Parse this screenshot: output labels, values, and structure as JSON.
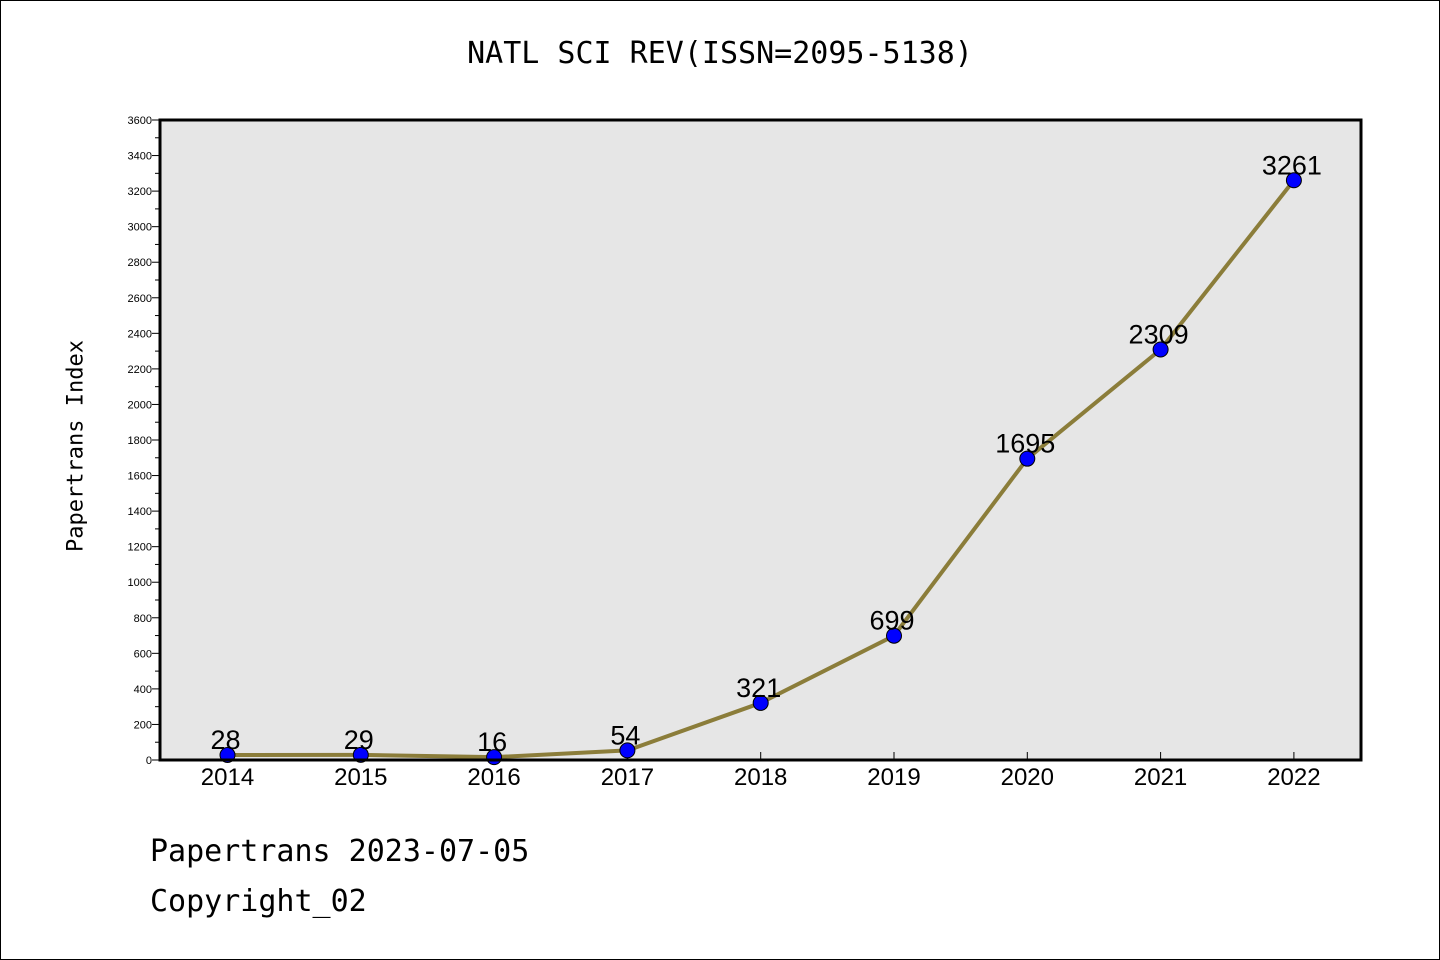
{
  "colors": {
    "plot_background": "#e6e6e6",
    "line": "#8b7d3a",
    "marker": "#0000ff",
    "axis": "#000000"
  },
  "chart_data": {
    "type": "line",
    "title": "NATL SCI REV(ISSN=2095-5138)",
    "xlabel": "",
    "ylabel": "Papertrans Index",
    "categories": [
      "2014",
      "2015",
      "2016",
      "2017",
      "2018",
      "2019",
      "2020",
      "2021",
      "2022"
    ],
    "series": [
      {
        "values": [
          28,
          29,
          16,
          54,
          321,
          699,
          1695,
          2309,
          3261
        ]
      }
    ],
    "data_labels": [
      "28",
      "29",
      "16",
      "54",
      "321",
      "699",
      "1695",
      "2309",
      "3261"
    ],
    "ylim": [
      0,
      3600
    ],
    "yticks": [
      "0",
      "200",
      "400",
      "600",
      "800",
      "1000",
      "1200",
      "1400",
      "1600",
      "1800",
      "2000",
      "2200",
      "2400",
      "2600",
      "2800",
      "3000",
      "3200",
      "3400",
      "3600"
    ],
    "grid": false,
    "legend": "none"
  },
  "footer": {
    "line1": "Papertrans 2023-07-05",
    "line2": "Copyright_02"
  }
}
